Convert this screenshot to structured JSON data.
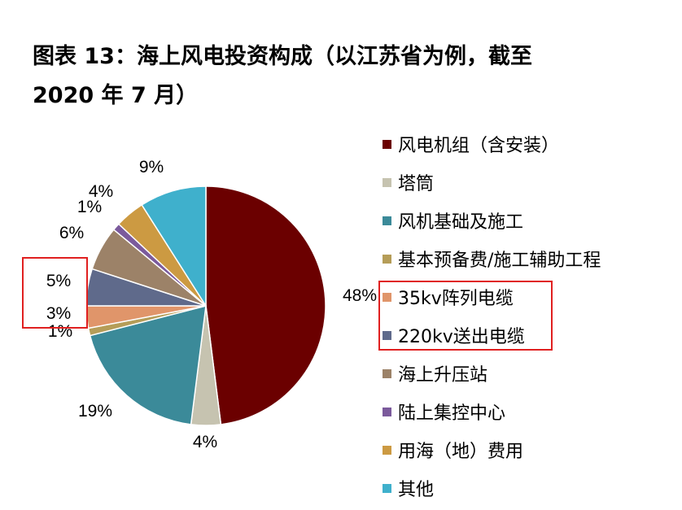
{
  "title": {
    "line1": "图表 13：海上风电投资构成（以江苏省为例，截至",
    "line2": "2020 年 7 月）"
  },
  "chart_data": {
    "type": "pie",
    "start_angle_deg": 0,
    "direction": "clockwise",
    "slices": [
      {
        "label": "风电机组（含安装）",
        "value": 48,
        "pct_label": "48%",
        "color": "#6b0000"
      },
      {
        "label": "塔筒",
        "value": 4,
        "pct_label": "4%",
        "color": "#c6c3b0"
      },
      {
        "label": "风机基础及施工",
        "value": 19,
        "pct_label": "19%",
        "color": "#3b8a99"
      },
      {
        "label": "基本预备费/施工辅助工程",
        "value": 1,
        "pct_label": "1%",
        "color": "#b59d58"
      },
      {
        "label": "35kv阵列电缆",
        "value": 3,
        "pct_label": "3%",
        "color": "#e0956a"
      },
      {
        "label": "220kv送出电缆",
        "value": 5,
        "pct_label": "5%",
        "color": "#5f6a8b"
      },
      {
        "label": "海上升压站",
        "value": 6,
        "pct_label": "6%",
        "color": "#9c8268"
      },
      {
        "label": "陆上集控中心",
        "value": 1,
        "pct_label": "1%",
        "color": "#7b5a9c"
      },
      {
        "label": "用海（地）费用",
        "value": 4,
        "pct_label": "4%",
        "color": "#cc9a42"
      },
      {
        "label": "其他",
        "value": 9,
        "pct_label": "9%",
        "color": "#3fb0cc"
      }
    ],
    "highlight_color": "#e02020"
  }
}
